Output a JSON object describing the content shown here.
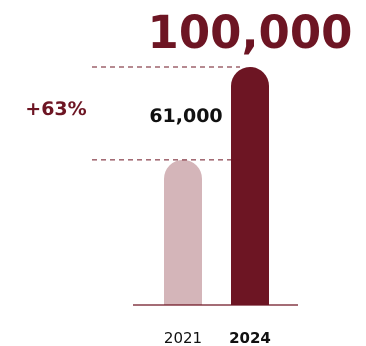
{
  "chart_data": {
    "type": "bar",
    "categories": [
      "2021",
      "2024"
    ],
    "values": [
      61000,
      100000
    ],
    "value_labels": [
      "61,000",
      "100,000"
    ],
    "change_label": "+63%",
    "ylim": [
      0,
      100000
    ],
    "grid": false,
    "colors": {
      "bar_2021": "#d4b5b9",
      "bar_2024": "#6d1523",
      "accent": "#6d1523",
      "text": "#111111"
    }
  }
}
